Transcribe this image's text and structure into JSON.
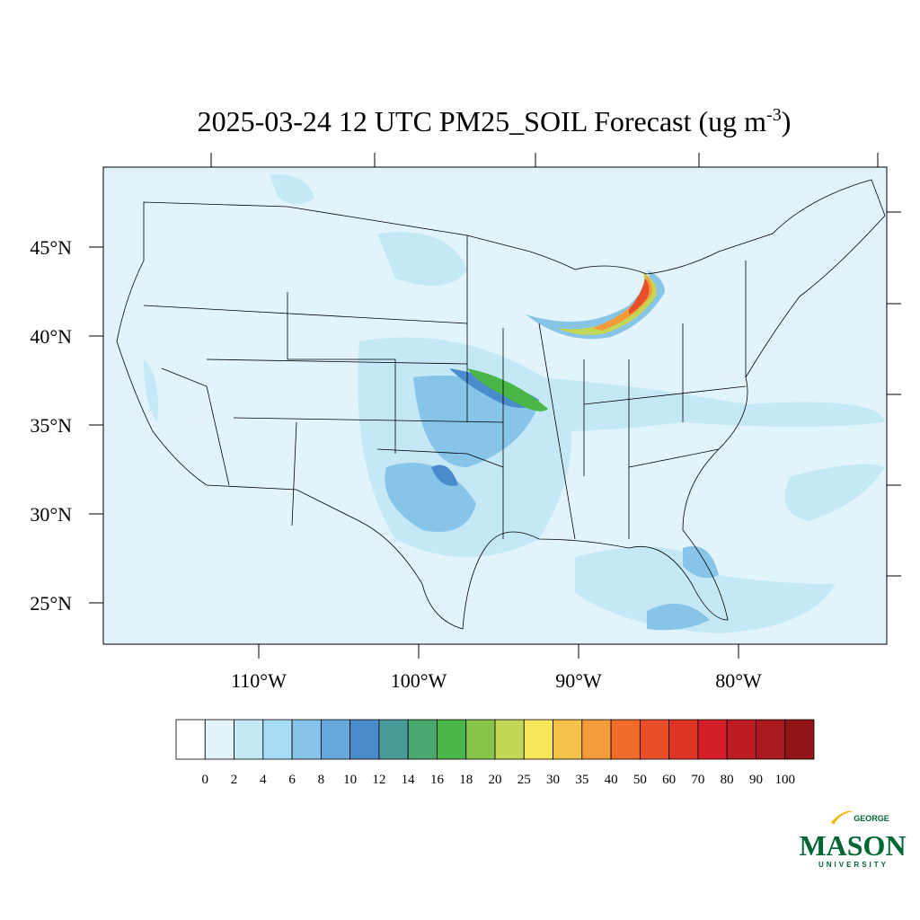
{
  "title": {
    "main": "2025-03-24 12 UTC PM25_SOIL Forecast (ug m",
    "superscript": "-3",
    "end": ")"
  },
  "lat_labels": [
    "45°N",
    "40°N",
    "35°N",
    "30°N",
    "25°N"
  ],
  "lon_labels": [
    "110°W",
    "100°W",
    "90°W",
    "80°W"
  ],
  "colorbar": {
    "levels": [
      0,
      2,
      4,
      6,
      8,
      10,
      12,
      14,
      16,
      18,
      20,
      25,
      30,
      35,
      40,
      50,
      60,
      70,
      80,
      90,
      100
    ],
    "colors": [
      "#ffffff",
      "#e1f3fb",
      "#c5e8f7",
      "#a6dcf4",
      "#86c4e8",
      "#66a8dc",
      "#4a8bcb",
      "#4a9a9a",
      "#48a86e",
      "#4ab648",
      "#86c44a",
      "#c4d656",
      "#f6e65a",
      "#f6c24a",
      "#f49a3a",
      "#f06c2a",
      "#e84e2a",
      "#de3424",
      "#d41f2a",
      "#be1c24",
      "#aa1a1e",
      "#921416"
    ]
  },
  "logo": {
    "top": "GEORGE",
    "main": "MASON",
    "bottom": "UNIVERSITY"
  }
}
